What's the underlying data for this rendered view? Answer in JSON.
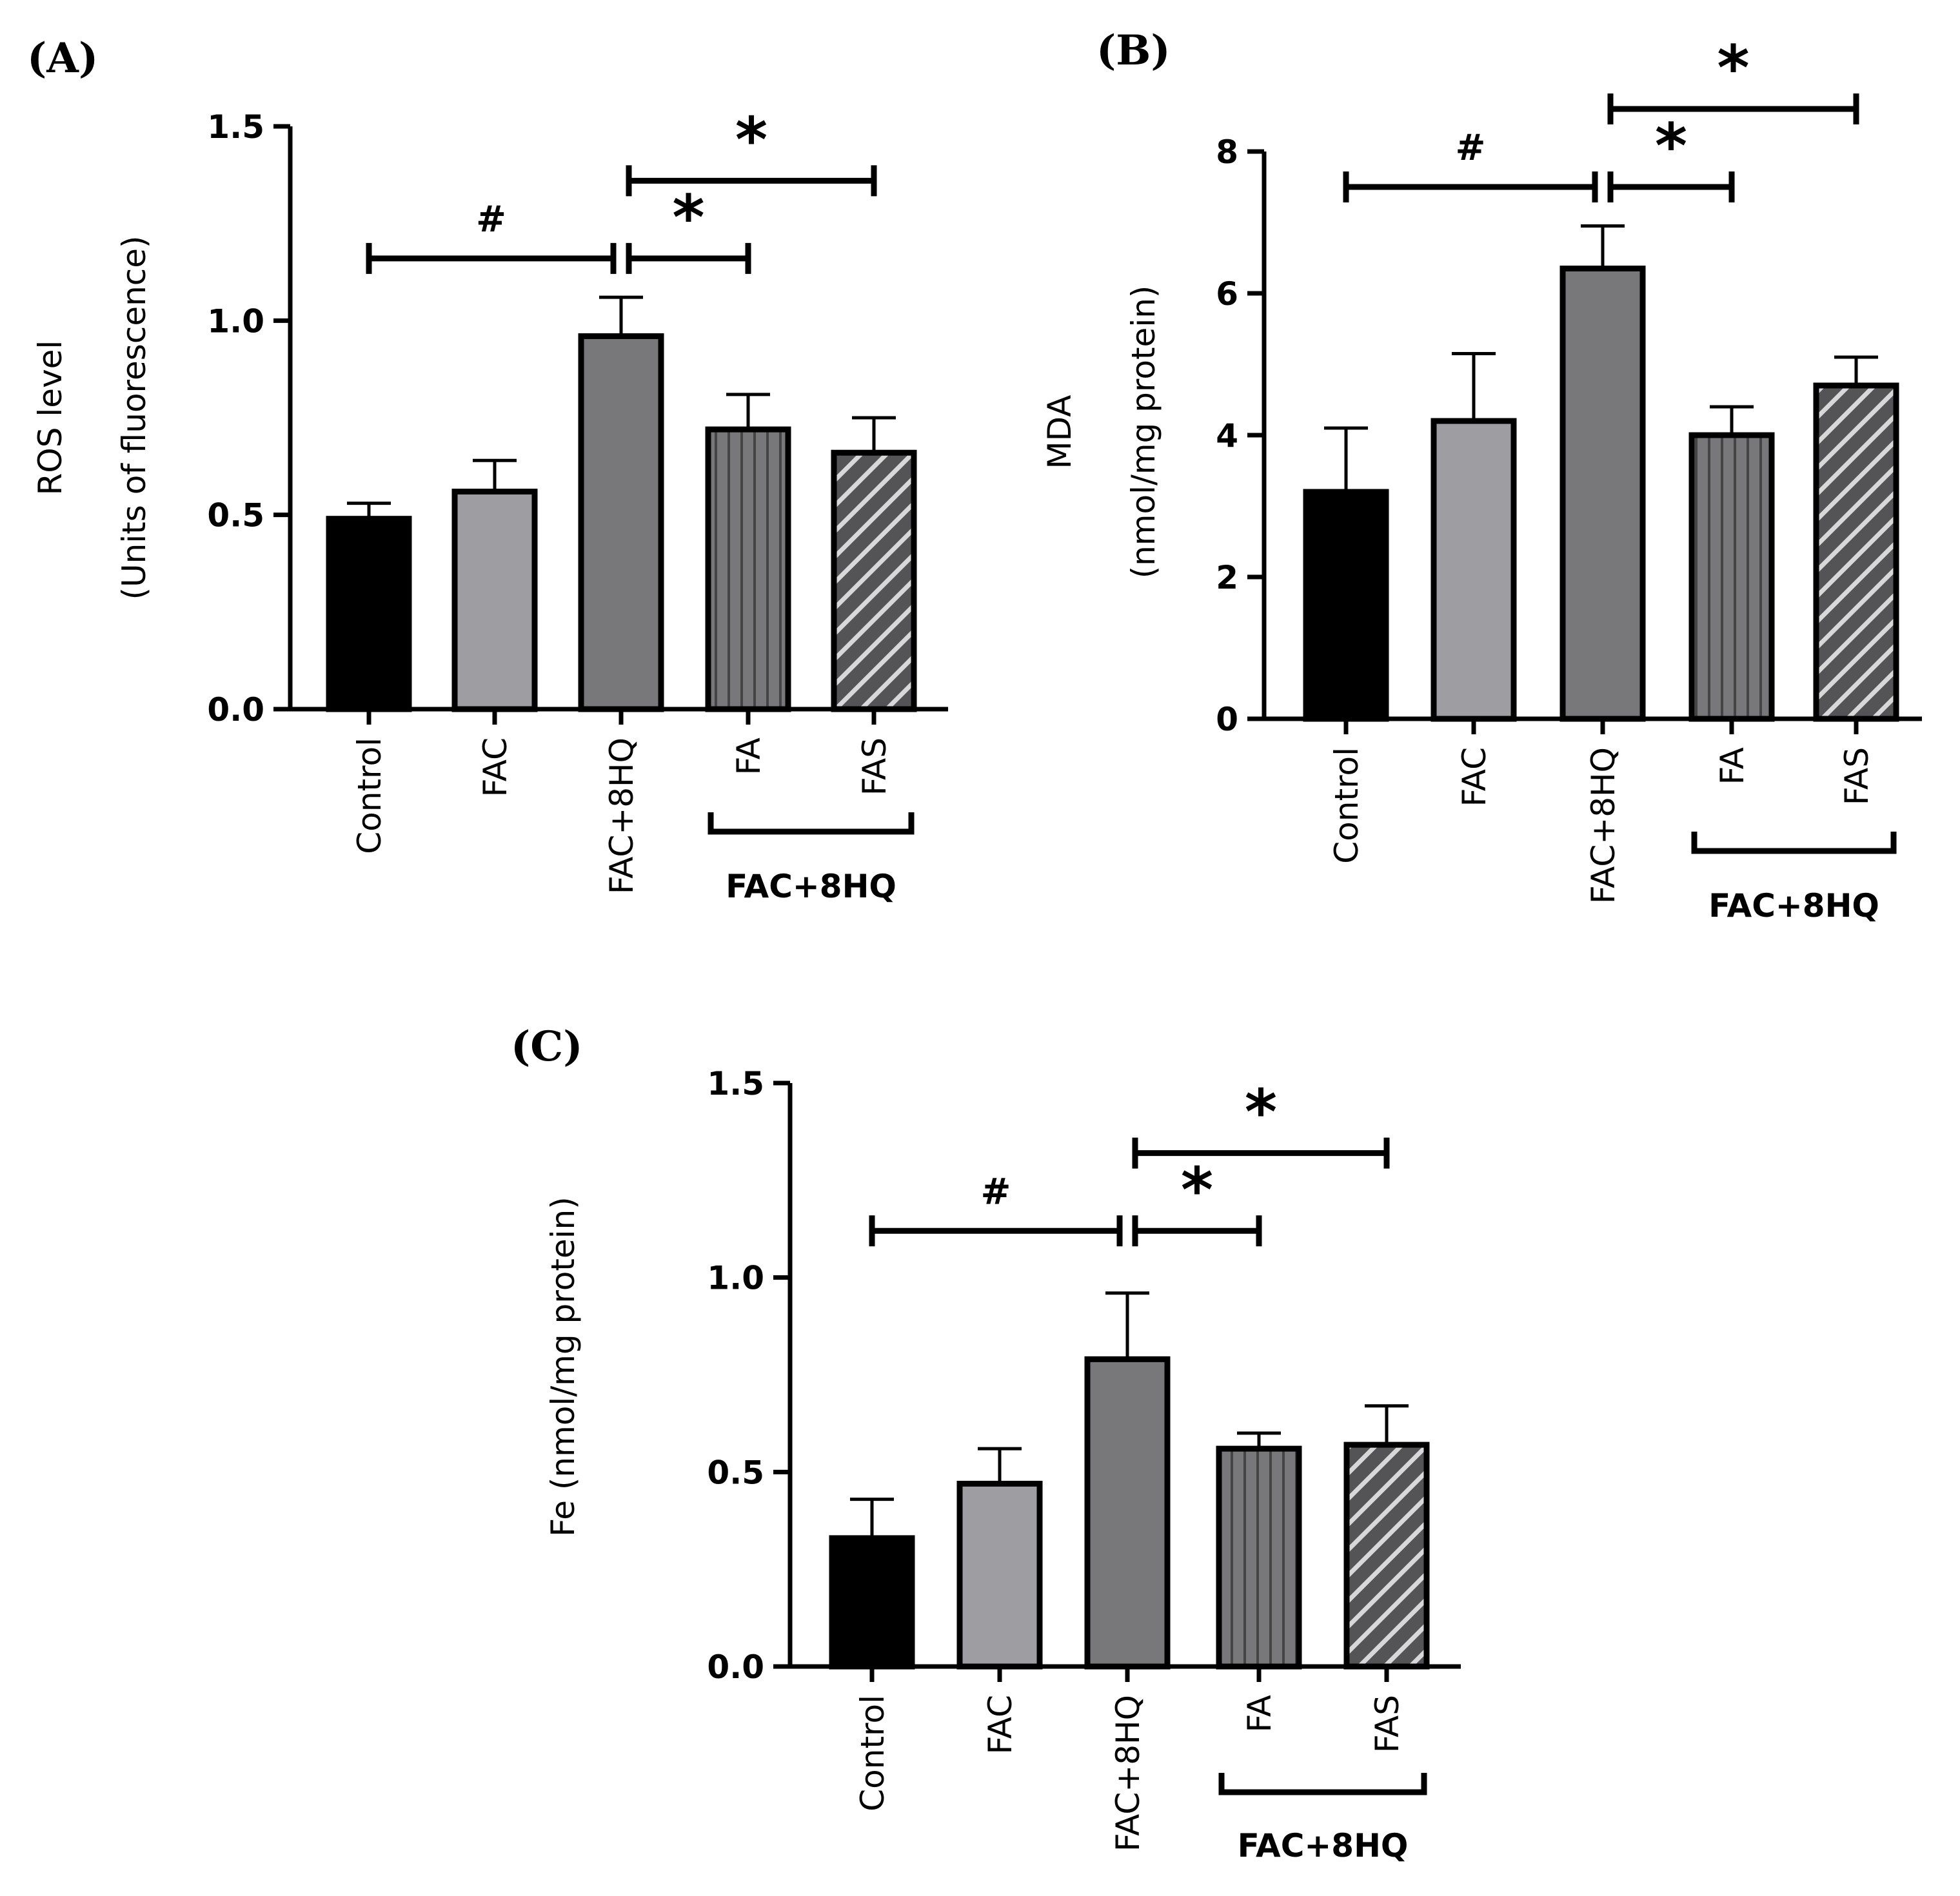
{
  "figure": {
    "colors": {
      "control": "#000000",
      "fac": "#9e9ea2",
      "fac8hq": "#78787a",
      "fa": "#78787a",
      "fas": "#545456",
      "stroke": "#000000"
    }
  },
  "chart_data": [
    {
      "panel": "(A)",
      "type": "bar",
      "categories": [
        "Control",
        "FAC",
        "FAC+8HQ",
        "FA",
        "FAS"
      ],
      "group_bracket": {
        "label": "FAC+8HQ",
        "from": 3,
        "to": 4
      },
      "values": [
        0.49,
        0.56,
        0.96,
        0.72,
        0.66
      ],
      "errors": [
        0.04,
        0.08,
        0.1,
        0.09,
        0.09
      ],
      "patterns": [
        "solid",
        "solid",
        "solid",
        "vertical",
        "diagonal"
      ],
      "ylim": [
        0,
        1.5
      ],
      "yticks": [
        0,
        0.5,
        1.0,
        1.5
      ],
      "ytick_labels": [
        "0.0",
        "0.5",
        "1.0",
        "1.5"
      ],
      "ylabel": [
        "ROS level",
        "(Units of fluorescence)"
      ],
      "xlabel": "",
      "significance": [
        {
          "from": 0,
          "to": 2,
          "mark": "#",
          "y": 1.16
        },
        {
          "from": 2,
          "to": 3,
          "mark": "*",
          "y": 1.16
        },
        {
          "from": 2,
          "to": 4,
          "mark": "*",
          "y": 1.36
        }
      ]
    },
    {
      "panel": "(B)",
      "type": "bar",
      "categories": [
        "Control",
        "FAC",
        "FAC+8HQ",
        "FA",
        "FAS"
      ],
      "group_bracket": {
        "label": "FAC+8HQ",
        "from": 3,
        "to": 4
      },
      "values": [
        3.2,
        4.2,
        6.35,
        4.0,
        4.7
      ],
      "errors": [
        0.9,
        0.95,
        0.6,
        0.4,
        0.4
      ],
      "patterns": [
        "solid",
        "solid",
        "solid",
        "vertical",
        "diagonal"
      ],
      "ylim": [
        0,
        8
      ],
      "yticks": [
        0,
        2,
        4,
        6,
        8
      ],
      "ytick_labels": [
        "0",
        "2",
        "4",
        "6",
        "8"
      ],
      "ylabel": [
        "MDA",
        "(nmol/mg protein)"
      ],
      "xlabel": "",
      "significance": [
        {
          "from": 0,
          "to": 2,
          "mark": "#",
          "y": 7.5
        },
        {
          "from": 2,
          "to": 3,
          "mark": "*",
          "y": 7.5
        },
        {
          "from": 2,
          "to": 4,
          "mark": "*",
          "y": 8.6
        }
      ]
    },
    {
      "panel": "(C)",
      "type": "bar",
      "categories": [
        "Control",
        "FAC",
        "FAC+8HQ",
        "FA",
        "FAS"
      ],
      "group_bracket": {
        "label": "FAC+8HQ",
        "from": 3,
        "to": 4
      },
      "values": [
        0.33,
        0.47,
        0.79,
        0.56,
        0.57
      ],
      "errors": [
        0.1,
        0.09,
        0.17,
        0.04,
        0.1
      ],
      "patterns": [
        "solid",
        "solid",
        "solid",
        "vertical",
        "diagonal"
      ],
      "ylim": [
        0,
        1.5
      ],
      "yticks": [
        0,
        0.5,
        1.0,
        1.5
      ],
      "ytick_labels": [
        "0.0",
        "0.5",
        "1.0",
        "1.5"
      ],
      "ylabel": [
        "Fe (nmol/mg protein)"
      ],
      "xlabel": "",
      "significance": [
        {
          "from": 0,
          "to": 2,
          "mark": "#",
          "y": 1.12
        },
        {
          "from": 2,
          "to": 3,
          "mark": "*",
          "y": 1.12
        },
        {
          "from": 2,
          "to": 4,
          "mark": "*",
          "y": 1.32
        }
      ]
    }
  ]
}
